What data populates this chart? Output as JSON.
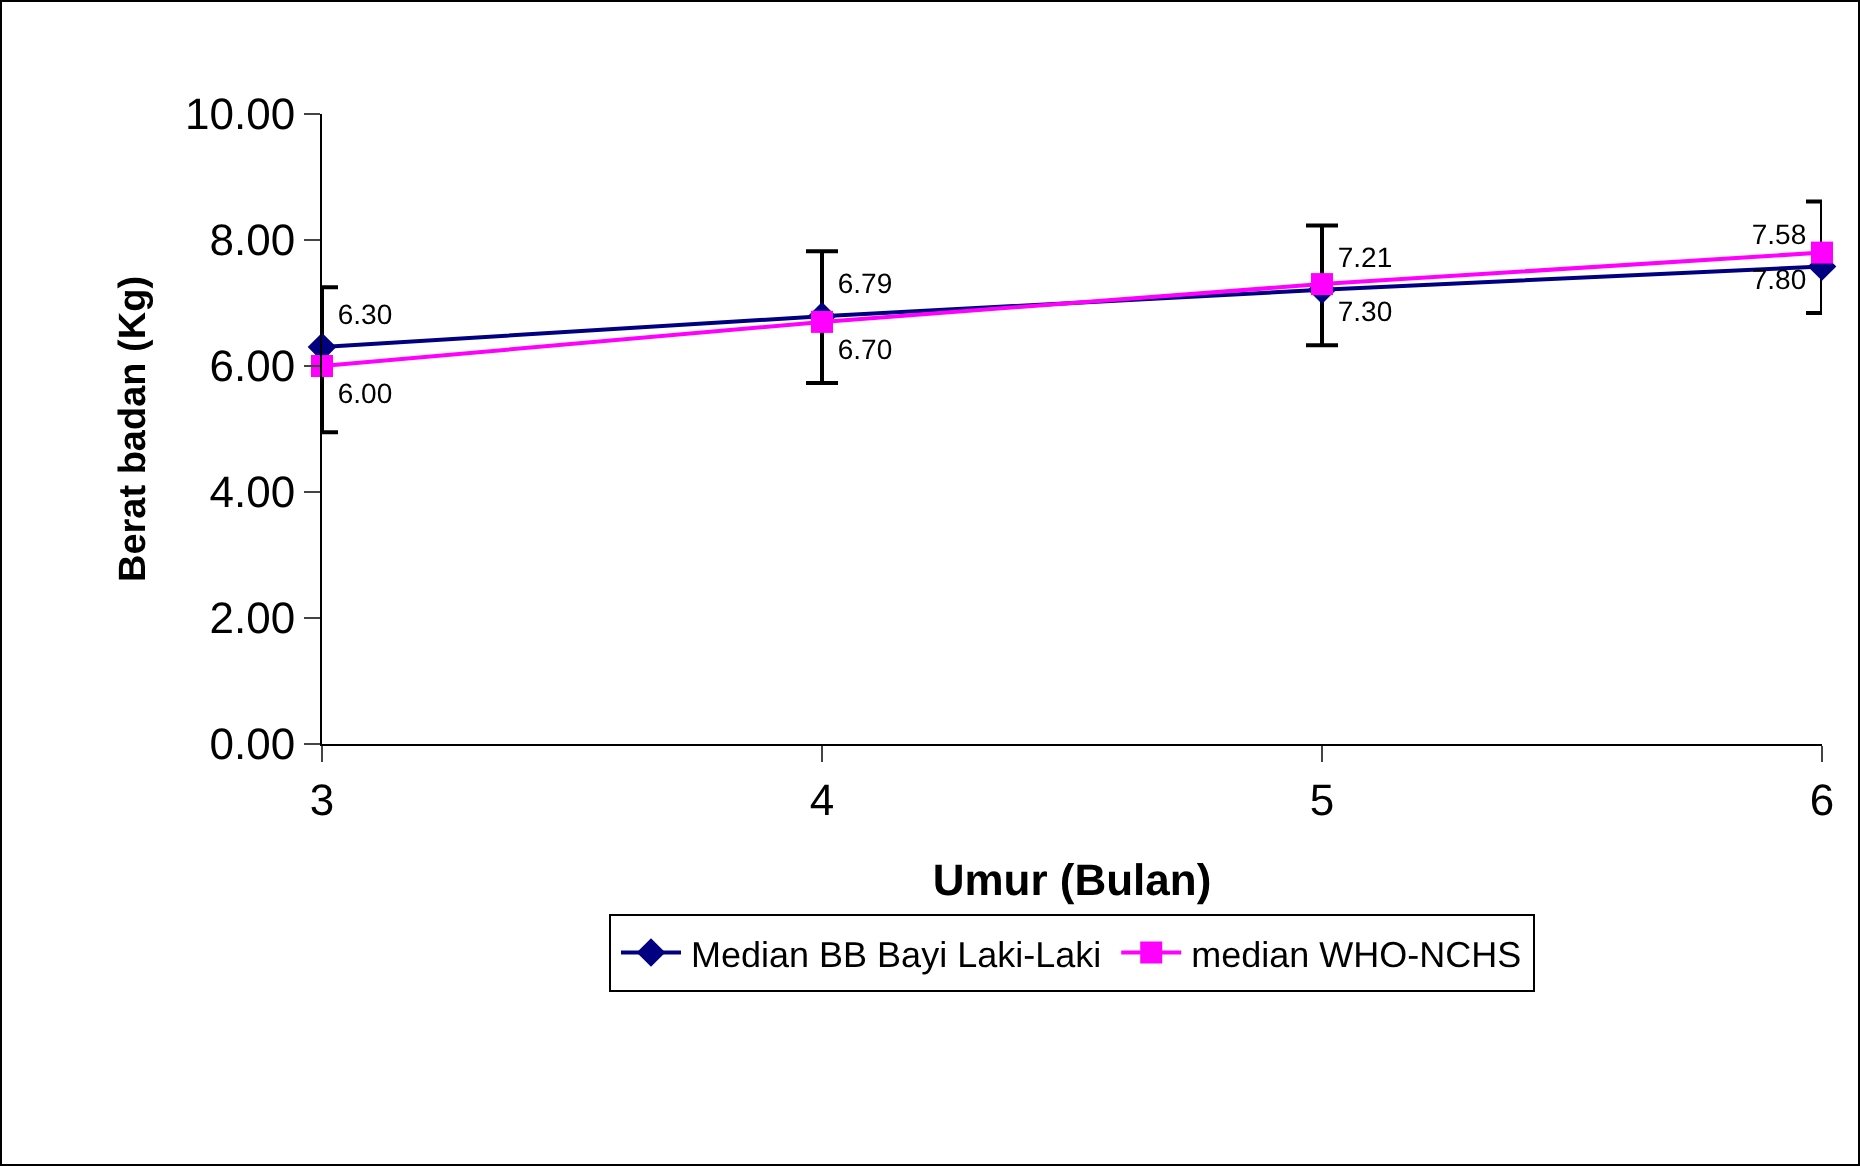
{
  "chart_data": {
    "type": "line",
    "xlabel": "Umur (Bulan)",
    "ylabel": "Berat badan (Kg)",
    "x": [
      3,
      4,
      5,
      6
    ],
    "xlim": [
      3,
      6
    ],
    "xticks": [
      3,
      4,
      5,
      6
    ],
    "ylim": [
      0,
      10
    ],
    "yticks": [
      {
        "value": 0,
        "label": "0.00"
      },
      {
        "value": 2,
        "label": "2.00"
      },
      {
        "value": 4,
        "label": "4.00"
      },
      {
        "value": 6,
        "label": "6.00"
      },
      {
        "value": 8,
        "label": "8.00"
      },
      {
        "value": 10,
        "label": "10.00"
      }
    ],
    "grid": false,
    "legend": "bottom",
    "series": [
      {
        "name": "Median BB Bayi Laki-Laki",
        "color": "#000080",
        "marker": "diamond",
        "values": [
          6.3,
          6.79,
          7.21,
          7.58
        ],
        "value_labels": [
          "6.30",
          "6.79",
          "7.21",
          "7.58"
        ],
        "errors": [
          [
            4.95,
            7.25
          ],
          [
            5.73,
            7.82
          ],
          [
            6.33,
            8.23
          ],
          [
            6.84,
            8.61
          ]
        ]
      },
      {
        "name": "median WHO-NCHS",
        "color": "#ff00ff",
        "marker": "square",
        "values": [
          6.0,
          6.7,
          7.3,
          7.8
        ],
        "value_labels": [
          "6.00",
          "6.70",
          "7.30",
          "7.80"
        ]
      }
    ]
  }
}
